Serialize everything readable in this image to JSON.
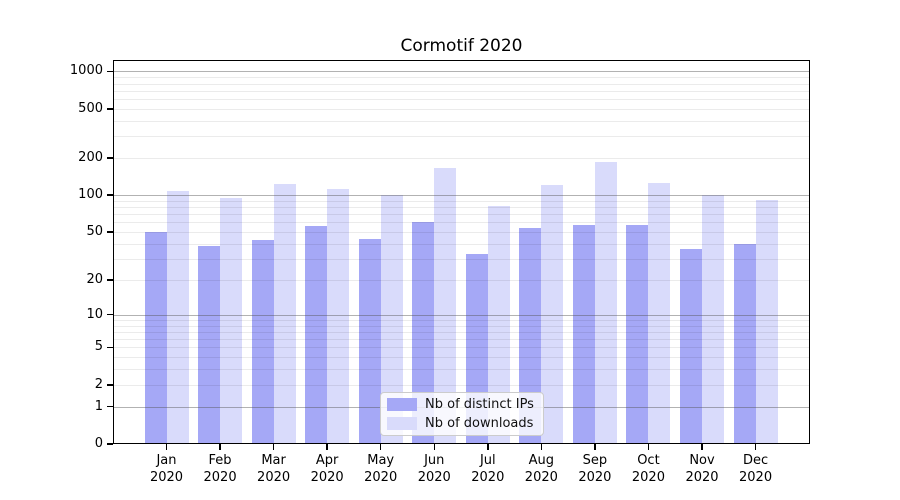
{
  "chart_data": {
    "type": "bar",
    "title": "Cormotif 2020",
    "categories": [
      "Jan 2020",
      "Feb 2020",
      "Mar 2020",
      "Apr 2020",
      "May 2020",
      "Jun 2020",
      "Jul 2020",
      "Aug 2020",
      "Sep 2020",
      "Oct 2020",
      "Nov 2020",
      "Dec 2020"
    ],
    "series": [
      {
        "name": "Nb of distinct IPs",
        "color": "#a5a8f6",
        "values": [
          50,
          38,
          43,
          56,
          44,
          60,
          33,
          54,
          57,
          57,
          36,
          40
        ]
      },
      {
        "name": "Nb of downloads",
        "color": "#d9dbfb",
        "values": [
          108,
          94,
          124,
          113,
          100,
          165,
          82,
          121,
          185,
          125,
          101,
          92
        ]
      }
    ],
    "y_axis": {
      "scale": "log1p",
      "tick_labels": [
        0,
        1,
        2,
        5,
        10,
        20,
        50,
        100,
        200,
        500,
        1000
      ],
      "major_gridlines": [
        1,
        10,
        100,
        1000
      ],
      "minor_gridlines": [
        3,
        4,
        6,
        7,
        8,
        9,
        30,
        40,
        60,
        70,
        80,
        90,
        300,
        400,
        600,
        700,
        800,
        900
      ],
      "ylim": [
        0,
        1200
      ]
    },
    "x_axis": {
      "label": "",
      "tick_label_lines": 2
    },
    "legend": {
      "position": "lower center",
      "items": [
        "Nb of distinct IPs",
        "Nb of downloads"
      ]
    },
    "grid": true,
    "colors": {
      "bar_distinct_ips": "#a5a8f6",
      "bar_downloads": "#d9dbfb",
      "axis": "#000000"
    }
  }
}
